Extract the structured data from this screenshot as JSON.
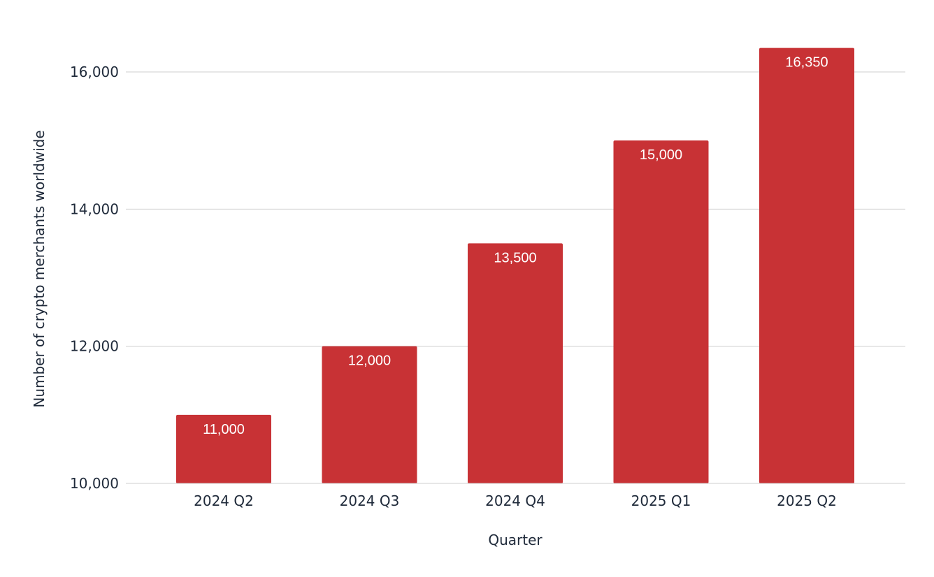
{
  "chart_data": {
    "type": "bar",
    "title": "",
    "xlabel": "Quarter",
    "ylabel": "Number of crypto merchants worldwide",
    "categories": [
      "2024 Q2",
      "2024 Q3",
      "2024 Q4",
      "2025 Q1",
      "2025 Q2"
    ],
    "series": [
      {
        "values": [
          11000,
          12000,
          13500,
          15000,
          16350
        ],
        "labels": [
          "11,000",
          "12,000",
          "13,500",
          "15,000",
          "16,350"
        ],
        "color": "#c83235"
      }
    ],
    "ylim": [
      10000,
      16500
    ],
    "yticks": [
      10000,
      12000,
      14000,
      16000
    ],
    "ytick_labels": [
      "10,000",
      "12,000",
      "14,000",
      "16,000"
    ],
    "grid": true,
    "legend": "none"
  }
}
